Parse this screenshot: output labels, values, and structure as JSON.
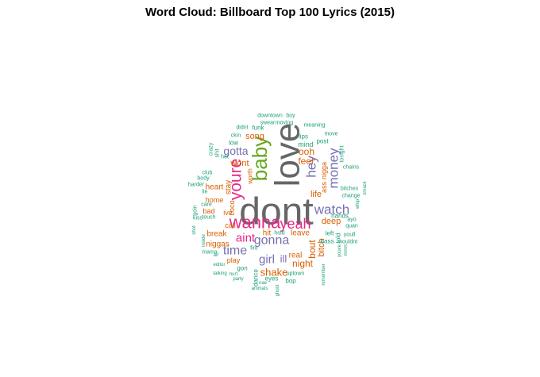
{
  "chart_data": {
    "type": "wordcloud",
    "title": "Word Cloud: Billboard Top 100 Lyrics (2015)",
    "palette": {
      "gray": "#666666",
      "pink": "#e7298a",
      "green": "#1b9e77",
      "purple": "#7570b3",
      "orange": "#d95f02",
      "olive": "#66a61e"
    },
    "words": [
      {
        "text": "dont",
        "size": 48,
        "color": "gray",
        "rotate": 0
      },
      {
        "text": "love",
        "size": 44,
        "color": "gray",
        "rotate": -90
      },
      {
        "text": "baby",
        "size": 26,
        "color": "olive",
        "rotate": -90
      },
      {
        "text": "wanna",
        "size": 22,
        "color": "pink",
        "rotate": 0
      },
      {
        "text": "youre",
        "size": 21,
        "color": "pink",
        "rotate": -90
      },
      {
        "text": "yeah",
        "size": 18,
        "color": "pink",
        "rotate": 0
      },
      {
        "text": "hey",
        "size": 17,
        "color": "purple",
        "rotate": -90
      },
      {
        "text": "money",
        "size": 17,
        "color": "purple",
        "rotate": -90
      },
      {
        "text": "watch",
        "size": 17,
        "color": "purple",
        "rotate": 0
      },
      {
        "text": "gonna",
        "size": 16,
        "color": "purple",
        "rotate": 0
      },
      {
        "text": "aint",
        "size": 15,
        "color": "pink",
        "rotate": 0
      },
      {
        "text": "time",
        "size": 16,
        "color": "purple",
        "rotate": 0
      },
      {
        "text": "girl",
        "size": 15,
        "color": "purple",
        "rotate": 0
      },
      {
        "text": "gotta",
        "size": 14,
        "color": "purple",
        "rotate": 0
      },
      {
        "text": "shake",
        "size": 13,
        "color": "orange",
        "rotate": 0
      },
      {
        "text": "ill",
        "size": 13,
        "color": "purple",
        "rotate": 0
      },
      {
        "text": "ooh",
        "size": 12,
        "color": "orange",
        "rotate": 0
      },
      {
        "text": "feel",
        "size": 12,
        "color": "orange",
        "rotate": 0
      },
      {
        "text": "night",
        "size": 12,
        "color": "orange",
        "rotate": 0
      },
      {
        "text": "bout",
        "size": 12,
        "color": "orange",
        "rotate": -90
      },
      {
        "text": "song",
        "size": 11,
        "color": "orange",
        "rotate": 0
      },
      {
        "text": "wont",
        "size": 11,
        "color": "orange",
        "rotate": 0
      },
      {
        "text": "heart",
        "size": 10,
        "color": "orange",
        "rotate": 0
      },
      {
        "text": "stay",
        "size": 10,
        "color": "orange",
        "rotate": -90
      },
      {
        "text": "life",
        "size": 11,
        "color": "orange",
        "rotate": 0
      },
      {
        "text": "deep",
        "size": 11,
        "color": "orange",
        "rotate": 0
      },
      {
        "text": "bitch",
        "size": 11,
        "color": "orange",
        "rotate": -90
      },
      {
        "text": "real",
        "size": 10,
        "color": "orange",
        "rotate": 0
      },
      {
        "text": "hit",
        "size": 10,
        "color": "orange",
        "rotate": 0
      },
      {
        "text": "leave",
        "size": 10,
        "color": "orange",
        "rotate": 0
      },
      {
        "text": "break",
        "size": 10,
        "color": "orange",
        "rotate": 0
      },
      {
        "text": "niggas",
        "size": 10,
        "color": "orange",
        "rotate": 0
      },
      {
        "text": "play",
        "size": 9,
        "color": "orange",
        "rotate": 0
      },
      {
        "text": "home",
        "size": 9,
        "color": "orange",
        "rotate": 0
      },
      {
        "text": "bad",
        "size": 9,
        "color": "orange",
        "rotate": 0
      },
      {
        "text": "ive",
        "size": 9,
        "color": "orange",
        "rotate": 0
      },
      {
        "text": "coco",
        "size": 9,
        "color": "orange",
        "rotate": -90
      },
      {
        "text": "call",
        "size": 9,
        "color": "orange",
        "rotate": 0
      },
      {
        "text": "nigga",
        "size": 9,
        "color": "orange",
        "rotate": -90
      },
      {
        "text": "ass",
        "size": 9,
        "color": "orange",
        "rotate": -90
      },
      {
        "text": "mind",
        "size": 9,
        "color": "green",
        "rotate": 0
      },
      {
        "text": "lips",
        "size": 8,
        "color": "green",
        "rotate": 0
      },
      {
        "text": "post",
        "size": 8,
        "color": "green",
        "rotate": 0
      },
      {
        "text": "worth",
        "size": 8,
        "color": "orange",
        "rotate": -90
      },
      {
        "text": "left",
        "size": 8,
        "color": "green",
        "rotate": 0
      },
      {
        "text": "bass",
        "size": 8,
        "color": "green",
        "rotate": 0
      },
      {
        "text": "hands",
        "size": 8,
        "color": "green",
        "rotate": 0
      },
      {
        "text": "told",
        "size": 8,
        "color": "green",
        "rotate": -90
      },
      {
        "text": "dance",
        "size": 8,
        "color": "green",
        "rotate": -90
      },
      {
        "text": "eyes",
        "size": 8,
        "color": "green",
        "rotate": 0
      },
      {
        "text": "gon",
        "size": 8,
        "color": "green",
        "rotate": 0
      },
      {
        "text": "hold",
        "size": 7,
        "color": "green",
        "rotate": 0
      },
      {
        "text": "fire",
        "size": 7,
        "color": "green",
        "rotate": 0
      },
      {
        "text": "uptown",
        "size": 7,
        "color": "green",
        "rotate": 0
      },
      {
        "text": "bop",
        "size": 8,
        "color": "green",
        "rotate": 0
      },
      {
        "text": "downtown",
        "size": 7,
        "color": "green",
        "rotate": 0
      },
      {
        "text": "boy",
        "size": 7,
        "color": "green",
        "rotate": 0
      },
      {
        "text": "swear",
        "size": 7,
        "color": "green",
        "rotate": 0
      },
      {
        "text": "moving",
        "size": 7,
        "color": "green",
        "rotate": 0
      },
      {
        "text": "meaning",
        "size": 7,
        "color": "green",
        "rotate": 0
      },
      {
        "text": "didnt",
        "size": 7,
        "color": "green",
        "rotate": 0
      },
      {
        "text": "funk",
        "size": 8,
        "color": "green",
        "rotate": 0
      },
      {
        "text": "move",
        "size": 7,
        "color": "green",
        "rotate": 0
      },
      {
        "text": "ckin",
        "size": 7,
        "color": "green",
        "rotate": 0
      },
      {
        "text": "low",
        "size": 8,
        "color": "green",
        "rotate": 0
      },
      {
        "text": "crazy",
        "size": 7,
        "color": "green",
        "rotate": -90
      },
      {
        "text": "shit",
        "size": 7,
        "color": "green",
        "rotate": -90
      },
      {
        "text": "hot",
        "size": 7,
        "color": "green",
        "rotate": 0
      },
      {
        "text": "tonight",
        "size": 7,
        "color": "green",
        "rotate": -90
      },
      {
        "text": "chains",
        "size": 7,
        "color": "green",
        "rotate": 0
      },
      {
        "text": "club",
        "size": 7,
        "color": "green",
        "rotate": 0
      },
      {
        "text": "harder",
        "size": 7,
        "color": "green",
        "rotate": 0
      },
      {
        "text": "lie",
        "size": 7,
        "color": "green",
        "rotate": 0
      },
      {
        "text": "care",
        "size": 7,
        "color": "green",
        "rotate": 0
      },
      {
        "text": "body",
        "size": 7,
        "color": "green",
        "rotate": 0
      },
      {
        "text": "goin",
        "size": 7,
        "color": "green",
        "rotate": -90
      },
      {
        "text": "touch",
        "size": 7,
        "color": "green",
        "rotate": 0
      },
      {
        "text": "kiss",
        "size": 7,
        "color": "green",
        "rotate": 0
      },
      {
        "text": "shot",
        "size": 6,
        "color": "green",
        "rotate": -90
      },
      {
        "text": "inside",
        "size": 6,
        "color": "green",
        "rotate": -90
      },
      {
        "text": "mama",
        "size": 7,
        "color": "green",
        "rotate": 0
      },
      {
        "text": "air",
        "size": 6,
        "color": "green",
        "rotate": 0
      },
      {
        "text": "editor",
        "size": 6,
        "color": "green",
        "rotate": 0
      },
      {
        "text": "talking",
        "size": 6,
        "color": "green",
        "rotate": 0
      },
      {
        "text": "hurt",
        "size": 6,
        "color": "green",
        "rotate": 0
      },
      {
        "text": "party",
        "size": 6,
        "color": "green",
        "rotate": 0
      },
      {
        "text": "nae",
        "size": 6,
        "color": "green",
        "rotate": 0
      },
      {
        "text": "animals",
        "size": 6,
        "color": "green",
        "rotate": 0
      },
      {
        "text": "ghost",
        "size": 6,
        "color": "green",
        "rotate": -90
      },
      {
        "text": "remember",
        "size": 6,
        "color": "green",
        "rotate": -90
      },
      {
        "text": "youve",
        "size": 6,
        "color": "green",
        "rotate": -90
      },
      {
        "text": "youll",
        "size": 7,
        "color": "green",
        "rotate": 0
      },
      {
        "text": "wouldnt",
        "size": 7,
        "color": "green",
        "rotate": 0
      },
      {
        "text": "quan",
        "size": 7,
        "color": "green",
        "rotate": 0
      },
      {
        "text": "ayo",
        "size": 7,
        "color": "green",
        "rotate": 0
      },
      {
        "text": "whip",
        "size": 6,
        "color": "green",
        "rotate": -90
      },
      {
        "text": "smack",
        "size": 6,
        "color": "green",
        "rotate": -90
      },
      {
        "text": "change",
        "size": 7,
        "color": "green",
        "rotate": 0
      },
      {
        "text": "bitches",
        "size": 7,
        "color": "green",
        "rotate": 0
      },
      {
        "text": "mmm",
        "size": 6,
        "color": "green",
        "rotate": -90
      }
    ]
  }
}
